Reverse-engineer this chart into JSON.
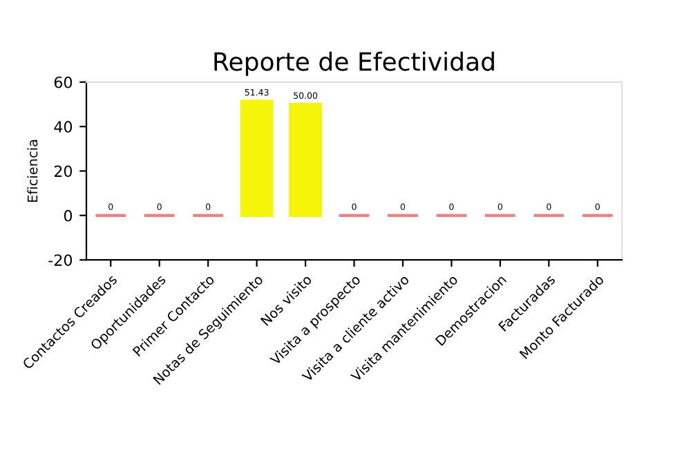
{
  "chart_data": {
    "type": "bar",
    "title": "Reporte de Efectividad",
    "ylabel": "Eficiencia",
    "categories": [
      "Contactos Creados",
      "Oportunidades",
      "Primer Contacto",
      "Notas de Seguimiento",
      "Nos visito",
      "Visita a prospecto",
      "Visita a cliente activo",
      "Visita mantenimiento",
      "Demostracion",
      "Facturadas",
      "Monto Facturado"
    ],
    "values": [
      0,
      0,
      0,
      51.43,
      50,
      0,
      0,
      0,
      0,
      0,
      0
    ],
    "value_labels": [
      "0",
      "0",
      "0",
      "51.43",
      "50.00",
      "0",
      "0",
      "0",
      "0",
      "0",
      "0"
    ],
    "colors": [
      "#f08080",
      "#f08080",
      "#f08080",
      "#f5f50a",
      "#f5f50a",
      "#f08080",
      "#f08080",
      "#f08080",
      "#f08080",
      "#f08080",
      "#f08080"
    ],
    "ylim": [
      -20,
      60
    ],
    "yticks": [
      -20,
      0,
      20,
      40,
      60
    ],
    "grid": false,
    "legend": false
  }
}
